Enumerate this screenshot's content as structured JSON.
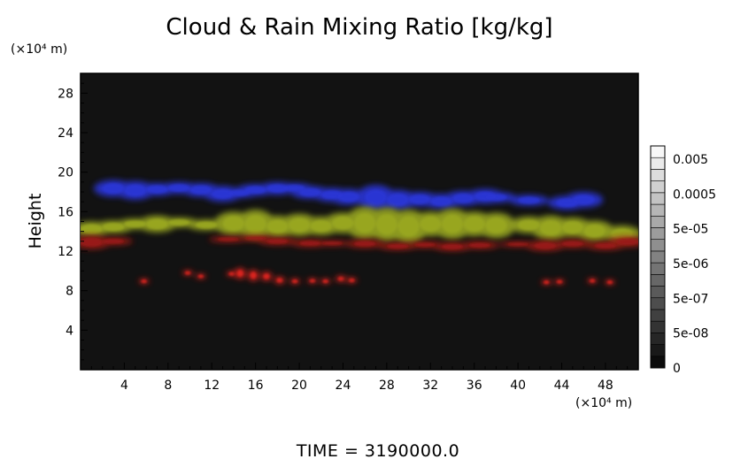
{
  "chart_data": {
    "type": "heatmap",
    "title": "Cloud & Rain Mixing Ratio [kg/kg]",
    "xunit": "(×10⁴ m)",
    "yunit": "(×10⁴ m)",
    "ylabel": "Height",
    "xlim": [
      0,
      51
    ],
    "ylim": [
      0,
      30
    ],
    "x_ticks": [
      4,
      8,
      12,
      16,
      20,
      24,
      28,
      32,
      36,
      40,
      44,
      48
    ],
    "y_ticks": [
      4,
      8,
      12,
      16,
      20,
      24,
      28
    ],
    "background_color": "#121212",
    "colorbar": {
      "labels": [
        "0.005",
        "0.0005",
        "5e-05",
        "5e-06",
        "5e-07",
        "5e-08",
        "0"
      ],
      "levels": 19
    },
    "layers": [
      {
        "color": "#2a36d6",
        "cells": [
          [
            3,
            17.5,
            19.2
          ],
          [
            5,
            17.2,
            19.1
          ],
          [
            7,
            17.6,
            18.9
          ],
          [
            9,
            17.8,
            19.0
          ],
          [
            11,
            17.5,
            18.9
          ],
          [
            13,
            17.0,
            18.6
          ],
          [
            14.5,
            17.4,
            18.4
          ],
          [
            16,
            17.6,
            18.8
          ],
          [
            18,
            17.7,
            19.0
          ],
          [
            19.5,
            17.9,
            18.9
          ],
          [
            21,
            17.3,
            18.6
          ],
          [
            23,
            17.0,
            18.4
          ],
          [
            24.5,
            16.7,
            18.3
          ],
          [
            27,
            16.2,
            18.7
          ],
          [
            29,
            16.2,
            18.2
          ],
          [
            31,
            16.5,
            18.0
          ],
          [
            33,
            16.3,
            17.8
          ],
          [
            35,
            16.6,
            18.1
          ],
          [
            37,
            16.8,
            18.3
          ],
          [
            38,
            16.9,
            18.0
          ],
          [
            41,
            16.6,
            17.7
          ],
          [
            44.5,
            16.2,
            17.6
          ],
          [
            46,
            16.4,
            18.0
          ]
        ]
      },
      {
        "color": "#9aa820",
        "cells": [
          [
            1,
            13.5,
            15.0
          ],
          [
            3,
            13.8,
            15.1
          ],
          [
            5,
            14.2,
            15.3
          ],
          [
            7,
            13.9,
            15.6
          ],
          [
            9,
            14.4,
            15.4
          ],
          [
            11.5,
            14.1,
            15.2
          ],
          [
            14,
            13.6,
            16.0
          ],
          [
            16,
            13.3,
            16.2
          ],
          [
            18,
            13.4,
            15.6
          ],
          [
            20,
            13.5,
            15.8
          ],
          [
            22,
            13.6,
            15.5
          ],
          [
            24,
            13.8,
            15.9
          ],
          [
            26,
            13.2,
            16.5
          ],
          [
            28,
            13.0,
            16.4
          ],
          [
            30,
            12.8,
            16.2
          ],
          [
            32,
            13.5,
            16.0
          ],
          [
            34,
            13.2,
            16.3
          ],
          [
            36,
            13.5,
            16.0
          ],
          [
            38,
            13.3,
            15.9
          ],
          [
            41,
            13.8,
            15.5
          ],
          [
            43,
            13.1,
            15.6
          ],
          [
            45,
            13.4,
            15.4
          ],
          [
            47,
            13.0,
            15.1
          ],
          [
            49.5,
            12.9,
            14.6
          ]
        ]
      },
      {
        "color": "#9a1a14",
        "cells": [
          [
            1,
            12.2,
            13.6
          ],
          [
            3,
            12.6,
            13.4
          ],
          [
            13.5,
            12.9,
            13.5
          ],
          [
            16,
            13.0,
            13.6
          ],
          [
            18,
            12.6,
            13.4
          ],
          [
            21,
            12.4,
            13.2
          ],
          [
            23,
            12.5,
            13.1
          ],
          [
            26,
            12.3,
            13.2
          ],
          [
            29,
            12.1,
            12.9
          ],
          [
            31.5,
            12.3,
            13.0
          ],
          [
            34,
            12.0,
            12.9
          ],
          [
            36.5,
            12.2,
            13.0
          ],
          [
            40,
            12.4,
            13.0
          ],
          [
            42.5,
            12.0,
            13.1
          ],
          [
            45,
            12.3,
            13.2
          ],
          [
            48,
            12.1,
            13.0
          ],
          [
            50,
            12.4,
            13.5
          ]
        ]
      },
      {
        "color": "#e0231f",
        "cells": [
          [
            5.8,
            8.8,
            9.1
          ],
          [
            9.8,
            9.6,
            10.0
          ],
          [
            11,
            9.3,
            9.6
          ],
          [
            13.8,
            9.5,
            9.9
          ],
          [
            14.6,
            9.2,
            10.3
          ],
          [
            15.8,
            9.0,
            10.1
          ],
          [
            17,
            9.0,
            9.9
          ],
          [
            18.2,
            8.7,
            9.4
          ],
          [
            19.6,
            8.7,
            9.2
          ],
          [
            21.2,
            8.8,
            9.2
          ],
          [
            22.4,
            8.8,
            9.1
          ],
          [
            23.8,
            8.9,
            9.5
          ],
          [
            24.8,
            8.8,
            9.3
          ],
          [
            42.6,
            8.7,
            9.0
          ],
          [
            43.8,
            8.7,
            9.1
          ],
          [
            46.8,
            8.8,
            9.2
          ],
          [
            48.4,
            8.7,
            9.0
          ]
        ]
      }
    ]
  },
  "footer": {
    "time_label": "TIME = 3190000.0"
  }
}
